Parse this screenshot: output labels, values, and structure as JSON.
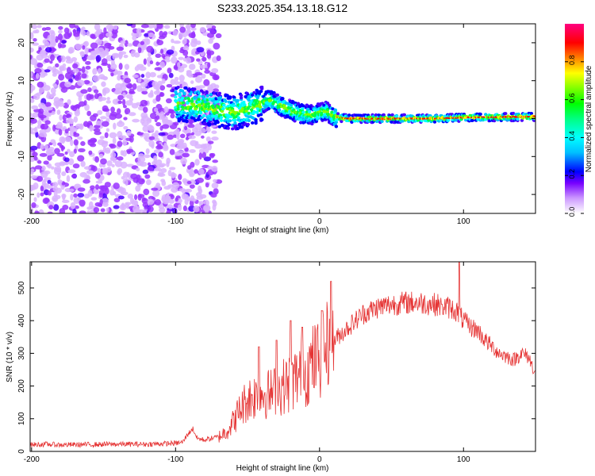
{
  "title": "S233.2025.354.13.18.G12",
  "colors": {
    "signal": "#e53333",
    "colormap": [
      "#f0f0ff",
      "#d9b3ff",
      "#9933ff",
      "#4b00ff",
      "#0000ff",
      "#00bfff",
      "#00ffff",
      "#00ff40",
      "#80ff00",
      "#ffff00",
      "#ff8000",
      "#ff0000",
      "#ff0080"
    ]
  },
  "chart_data": [
    {
      "type": "heatmap",
      "title": "",
      "xlabel": "Height of straight line (km)",
      "ylabel": "Frequency (Hz)",
      "xlim": [
        -201,
        150
      ],
      "ylim": [
        -25,
        25
      ],
      "xticks": [
        -200,
        -100,
        0,
        100
      ],
      "yticks": [
        -20,
        -10,
        0,
        10,
        20
      ],
      "xtick_labels": [
        "-200",
        "-100",
        "0",
        "100"
      ],
      "ytick_labels": [
        "-20",
        "-10",
        "0",
        "10",
        "20"
      ],
      "colorbar": {
        "label": "Normalized spectral amplitude",
        "range": [
          0,
          1
        ],
        "ticks": [
          0.0,
          0.2,
          0.4,
          0.6,
          0.8
        ],
        "tick_labels": [
          "0.0",
          "0.2",
          "0.4",
          "0.6",
          "0.8"
        ]
      },
      "ridge": {
        "x": [
          -100,
          -80,
          -60,
          -45,
          -35,
          -25,
          -15,
          -5,
          0,
          5,
          10,
          20,
          50,
          80,
          100,
          150
        ],
        "freq": [
          4,
          3,
          1.5,
          3,
          5,
          3,
          1.5,
          1,
          1.5,
          2,
          0.5,
          0,
          0,
          0,
          0.3,
          0.5
        ]
      },
      "noise_region_x": [
        -201,
        -70
      ]
    },
    {
      "type": "line",
      "title": "",
      "xlabel": "Height of straight line (km)",
      "ylabel": "SNR (10 * v/v)",
      "xlim": [
        -201,
        150
      ],
      "ylim": [
        0,
        580
      ],
      "xticks": [
        -200,
        -100,
        0,
        100
      ],
      "yticks": [
        0,
        100,
        200,
        300,
        400,
        500
      ],
      "xtick_labels": [
        "-200",
        "-100",
        "0",
        "100"
      ],
      "ytick_labels": [
        "0",
        "100",
        "200",
        "300",
        "400",
        "500"
      ],
      "series": [
        {
          "name": "SNR",
          "x": [
            -201,
            -190,
            -180,
            -160,
            -140,
            -120,
            -100,
            -95,
            -92,
            -88,
            -85,
            -80,
            -75,
            -70,
            -65,
            -60,
            -55,
            -50,
            -45,
            -40,
            -35,
            -30,
            -25,
            -20,
            -15,
            -10,
            -5,
            0,
            5,
            10,
            15,
            20,
            25,
            30,
            40,
            50,
            60,
            70,
            80,
            90,
            95,
            100,
            105,
            110,
            115,
            120,
            125,
            130,
            135,
            140,
            145,
            150
          ],
          "values": [
            20,
            22,
            20,
            21,
            22,
            22,
            25,
            28,
            50,
            70,
            40,
            35,
            40,
            45,
            60,
            90,
            130,
            160,
            170,
            180,
            175,
            185,
            200,
            210,
            230,
            240,
            270,
            290,
            320,
            340,
            360,
            380,
            400,
            420,
            440,
            450,
            455,
            455,
            450,
            440,
            430,
            400,
            380,
            370,
            340,
            320,
            300,
            290,
            280,
            300,
            290,
            240
          ],
          "spikes": [
            [
              -42,
              320
            ],
            [
              -30,
              340
            ],
            [
              -20,
              400
            ],
            [
              -12,
              380
            ],
            [
              2,
              430
            ],
            [
              8,
              520
            ],
            [
              85,
              450
            ],
            [
              97,
              580
            ]
          ]
        }
      ]
    }
  ]
}
